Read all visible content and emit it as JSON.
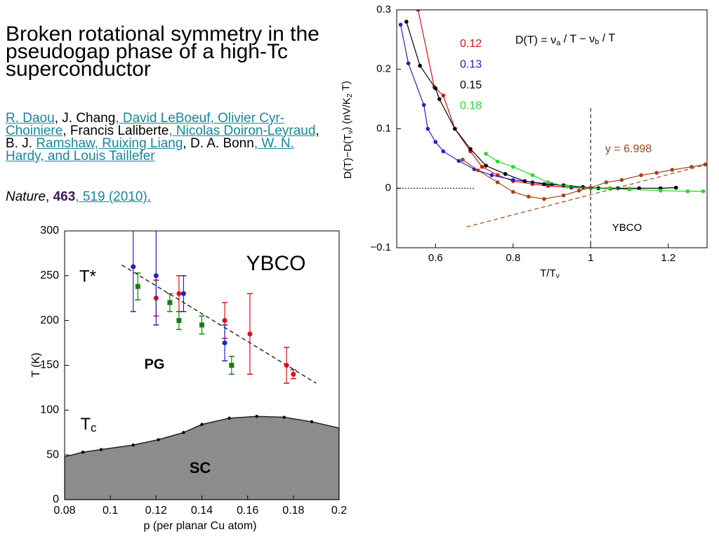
{
  "title": "Broken rotational symmetry in the pseudogap phase of a high-Tc superconductor",
  "authors": [
    {
      "text": "R. Daou",
      "link": true
    },
    {
      "text": ", J. Chang",
      "link": false
    },
    {
      "text": ", David LeBoeuf",
      "link": true
    },
    {
      "text": ", Olivier Cyr-Choiniere",
      "link": true
    },
    {
      "text": ", Francis Laliberte",
      "link": false
    },
    {
      "text": ", Nicolas Doiron-Leyraud",
      "link": true
    },
    {
      "text": ", B. J. ",
      "link": false
    },
    {
      "text": "Ramshaw, Ruixing Liang",
      "link": true
    },
    {
      "text": ", D. A. Bonn",
      "link": false
    },
    {
      "text": ", W. N. Hardy, and Louis Taillefer",
      "link": true
    }
  ],
  "citation": [
    {
      "text": "Nature",
      "style": "italic"
    },
    {
      "text": ", ",
      "style": "plain"
    },
    {
      "text": "463",
      "style": "bold"
    },
    {
      "text": ", 519 (2010).",
      "style": "link"
    }
  ],
  "chart_data": [
    {
      "type": "scatter",
      "xlabel": "p (per planar Cu atom)",
      "ylabel": "T (K)",
      "xlim": [
        0.08,
        0.2
      ],
      "ylim": [
        0,
        300
      ],
      "xticks": [
        0.08,
        0.1,
        0.12,
        0.14,
        0.16,
        0.18,
        0.2
      ],
      "yticks": [
        0,
        50,
        100,
        150,
        200,
        250,
        300
      ],
      "annotations": [
        {
          "text": "YBCO"
        },
        {
          "text": "T*"
        },
        {
          "text": "PG"
        },
        {
          "text": [
            "T",
            "c"
          ]
        },
        {
          "text": "SC"
        }
      ],
      "series": [
        {
          "mode": "area",
          "color": "#8c8c8c",
          "x": [
            0.08,
            0.088,
            0.096,
            0.11,
            0.121,
            0.132,
            0.14,
            0.152,
            0.164,
            0.176,
            0.188,
            0.2
          ],
          "values": [
            48,
            53,
            56,
            61,
            67,
            75,
            84,
            91,
            93,
            92,
            87,
            80
          ]
        },
        {
          "mode": "line",
          "dash": "dashed",
          "color": "#000000",
          "x": [
            0.105,
            0.19
          ],
          "values": [
            262,
            130
          ]
        },
        {
          "mode": "markers",
          "marker": "circle",
          "color": "#e01010",
          "x": [
            0.12,
            0.13,
            0.15,
            0.161,
            0.177,
            0.18
          ],
          "values": [
            225,
            230,
            200,
            185,
            150,
            140
          ],
          "errors": [
            20,
            20,
            20,
            45,
            20,
            5
          ]
        },
        {
          "mode": "markers",
          "marker": "circle",
          "color": "#2020d0",
          "x": [
            0.11,
            0.12,
            0.132,
            0.15
          ],
          "values": [
            260,
            250,
            230,
            175
          ],
          "errors": [
            50,
            55,
            20,
            20
          ]
        },
        {
          "mode": "markers",
          "marker": "square",
          "color": "#118011",
          "x": [
            0.112,
            0.126,
            0.13,
            0.14,
            0.153
          ],
          "values": [
            238,
            220,
            200,
            195,
            150
          ],
          "errors": [
            15,
            10,
            10,
            10,
            10
          ]
        }
      ]
    },
    {
      "type": "line",
      "xlabel": [
        "T/T",
        "ν"
      ],
      "ylabel": [
        "D(T)−D(T",
        "ν",
        ") (nV/K",
        "2",
        " T)"
      ],
      "xlim": [
        0.5,
        1.3
      ],
      "ylim": [
        -0.1,
        0.3
      ],
      "xticks": [
        0.6,
        0.8,
        1,
        1.2
      ],
      "yticks": [
        {
          "value": -0.1,
          "label": "−0.1"
        },
        0,
        0.1,
        0.2,
        0.3
      ],
      "legend": "upper left",
      "annotations": [
        {
          "text": [
            "D(T) = ν",
            "a",
            " / T − ν",
            "b",
            " / T"
          ]
        },
        {
          "text": "y = 6.998",
          "color": "#a0461a"
        },
        {
          "text": "YBCO"
        }
      ],
      "reference_lines": [
        {
          "axis": "y",
          "value": 0,
          "xrange": [
            0.5,
            0.7
          ]
        },
        {
          "axis": "x",
          "value": 1
        }
      ],
      "series": [
        {
          "name": "0.12",
          "mode": "lines+markers",
          "color": "#e01010",
          "x": [
            0.555,
            0.597,
            0.62,
            0.65,
            0.69,
            0.72,
            0.76,
            0.8,
            0.85,
            0.89,
            0.95,
            1,
            1.05,
            1.1
          ],
          "values": [
            0.3,
            0.17,
            0.156,
            0.1,
            0.062,
            0.036,
            0.022,
            0.012,
            0.007,
            0.004,
            0.001,
            0,
            0,
            -0.001
          ]
        },
        {
          "name": "0.13",
          "mode": "lines+markers",
          "color": "#2020d0",
          "x": [
            0.51,
            0.53,
            0.57,
            0.58,
            0.6,
            0.62,
            0.66,
            0.7,
            0.745,
            0.8,
            0.85,
            0.9,
            0.95,
            1
          ],
          "values": [
            0.275,
            0.21,
            0.14,
            0.1,
            0.078,
            0.062,
            0.046,
            0.032,
            0.022,
            0.014,
            0.01,
            0.007,
            0.002,
            0
          ]
        },
        {
          "name": "0.15",
          "mode": "lines+markers",
          "color": "#000000",
          "x": [
            0.525,
            0.56,
            0.6,
            0.61,
            0.65,
            0.69,
            0.73,
            0.78,
            0.83,
            0.88,
            0.93,
            0.98,
            1.02,
            1.07,
            1.125,
            1.18,
            1.22
          ],
          "values": [
            0.28,
            0.206,
            0.168,
            0.15,
            0.1,
            0.066,
            0.038,
            0.024,
            0.012,
            0.007,
            0.005,
            0.002,
            0,
            0,
            0,
            0,
            0.001
          ]
        },
        {
          "name": "0.18",
          "mode": "lines+markers",
          "color": "#22dd22",
          "x": [
            0.73,
            0.76,
            0.8,
            0.85,
            0.89,
            0.94,
            1,
            1.05,
            1.1,
            1.18,
            1.25,
            1.29
          ],
          "values": [
            0.058,
            0.045,
            0.036,
            0.022,
            0.01,
            0.003,
            0,
            -0.001,
            -0.002,
            -0.004,
            -0.005,
            -0.005
          ]
        },
        {
          "mode": "lines+markers",
          "color": "#a0461a",
          "x": [
            0.67,
            0.71,
            0.76,
            0.8,
            0.84,
            0.88,
            0.93,
            0.97,
            1,
            1.04,
            1.08,
            1.13,
            1.17,
            1.21,
            1.26,
            1.295
          ],
          "values": [
            0.048,
            0.03,
            0.01,
            -0.006,
            -0.014,
            -0.018,
            -0.012,
            -0.004,
            0.001,
            0.01,
            0.014,
            0.022,
            0.026,
            0.031,
            0.036,
            0.04
          ]
        },
        {
          "mode": "line",
          "dash": "dashed",
          "color": "#a0461a",
          "x": [
            0.68,
            1.3
          ],
          "values": [
            -0.065,
            0.04
          ]
        }
      ]
    }
  ]
}
